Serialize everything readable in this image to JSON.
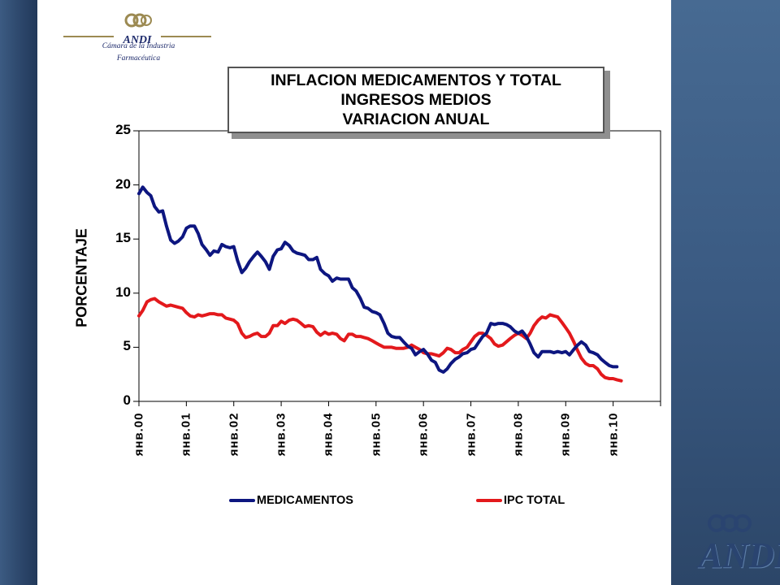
{
  "logo": {
    "name": "ANDI",
    "subtitle_line1": "Cámara de la Industria",
    "subtitle_line2": "Farmacéutica"
  },
  "title": {
    "line1": "INFLACION MEDICAMENTOS Y TOTAL",
    "line2": "INGRESOS MEDIOS",
    "line3": "VARIACION ANUAL"
  },
  "colors": {
    "medicamentos": "#0d1680",
    "ipc_total": "#e3191c",
    "background_band": "#2f4a6e"
  },
  "chart_data": {
    "type": "line",
    "ylabel": "PORCENTAJE",
    "xlabel": "",
    "ylim": [
      0,
      25
    ],
    "yticks": [
      "0",
      "5",
      "10",
      "15",
      "20",
      "25"
    ],
    "xticks": [
      "янв.00",
      "янв.01",
      "янв.02",
      "янв.03",
      "янв.04",
      "янв.05",
      "янв.06",
      "янв.07",
      "янв.08",
      "янв.09",
      "янв.10"
    ],
    "x_axis_units": "years since январь 2000",
    "xlim": [
      0,
      11
    ],
    "grid": false,
    "legend": "bottom",
    "series": [
      {
        "name": "MEDICAMENTOS",
        "points": [
          [
            0.0,
            19.2
          ],
          [
            0.08,
            19.8
          ],
          [
            0.17,
            19.3
          ],
          [
            0.25,
            19.0
          ],
          [
            0.33,
            18.0
          ],
          [
            0.42,
            17.5
          ],
          [
            0.5,
            17.6
          ],
          [
            0.58,
            16.2
          ],
          [
            0.67,
            14.9
          ],
          [
            0.75,
            14.6
          ],
          [
            0.83,
            14.8
          ],
          [
            0.92,
            15.2
          ],
          [
            1.0,
            16.0
          ],
          [
            1.08,
            16.2
          ],
          [
            1.17,
            16.2
          ],
          [
            1.25,
            15.5
          ],
          [
            1.33,
            14.5
          ],
          [
            1.42,
            14.0
          ],
          [
            1.5,
            13.5
          ],
          [
            1.58,
            13.9
          ],
          [
            1.67,
            13.8
          ],
          [
            1.75,
            14.5
          ],
          [
            1.83,
            14.3
          ],
          [
            1.92,
            14.2
          ],
          [
            2.0,
            14.3
          ],
          [
            2.08,
            13.0
          ],
          [
            2.17,
            11.9
          ],
          [
            2.25,
            12.3
          ],
          [
            2.33,
            12.9
          ],
          [
            2.42,
            13.4
          ],
          [
            2.5,
            13.8
          ],
          [
            2.58,
            13.4
          ],
          [
            2.67,
            12.9
          ],
          [
            2.75,
            12.2
          ],
          [
            2.83,
            13.4
          ],
          [
            2.92,
            14.0
          ],
          [
            3.0,
            14.1
          ],
          [
            3.08,
            14.7
          ],
          [
            3.17,
            14.4
          ],
          [
            3.25,
            13.9
          ],
          [
            3.33,
            13.7
          ],
          [
            3.42,
            13.6
          ],
          [
            3.5,
            13.5
          ],
          [
            3.58,
            13.1
          ],
          [
            3.67,
            13.1
          ],
          [
            3.75,
            13.3
          ],
          [
            3.83,
            12.2
          ],
          [
            3.92,
            11.8
          ],
          [
            4.0,
            11.6
          ],
          [
            4.08,
            11.1
          ],
          [
            4.17,
            11.4
          ],
          [
            4.25,
            11.3
          ],
          [
            4.33,
            11.3
          ],
          [
            4.42,
            11.3
          ],
          [
            4.5,
            10.5
          ],
          [
            4.58,
            10.2
          ],
          [
            4.67,
            9.5
          ],
          [
            4.75,
            8.7
          ],
          [
            4.83,
            8.6
          ],
          [
            4.92,
            8.3
          ],
          [
            5.0,
            8.2
          ],
          [
            5.08,
            8.0
          ],
          [
            5.17,
            7.2
          ],
          [
            5.25,
            6.3
          ],
          [
            5.33,
            6.0
          ],
          [
            5.42,
            5.9
          ],
          [
            5.5,
            5.9
          ],
          [
            5.58,
            5.5
          ],
          [
            5.67,
            5.1
          ],
          [
            5.75,
            4.9
          ],
          [
            5.83,
            4.3
          ],
          [
            5.92,
            4.6
          ],
          [
            6.0,
            4.8
          ],
          [
            6.08,
            4.4
          ],
          [
            6.17,
            3.8
          ],
          [
            6.25,
            3.6
          ],
          [
            6.33,
            2.9
          ],
          [
            6.42,
            2.7
          ],
          [
            6.5,
            3.0
          ],
          [
            6.58,
            3.5
          ],
          [
            6.67,
            3.9
          ],
          [
            6.75,
            4.1
          ],
          [
            6.83,
            4.4
          ],
          [
            6.92,
            4.5
          ],
          [
            7.0,
            4.8
          ],
          [
            7.08,
            4.9
          ],
          [
            7.17,
            5.5
          ],
          [
            7.25,
            6.0
          ],
          [
            7.33,
            6.3
          ],
          [
            7.42,
            7.2
          ],
          [
            7.5,
            7.1
          ],
          [
            7.58,
            7.2
          ],
          [
            7.67,
            7.2
          ],
          [
            7.75,
            7.1
          ],
          [
            7.83,
            6.9
          ],
          [
            7.92,
            6.5
          ],
          [
            8.0,
            6.3
          ],
          [
            8.08,
            6.5
          ],
          [
            8.17,
            6.0
          ],
          [
            8.25,
            5.3
          ],
          [
            8.33,
            4.5
          ],
          [
            8.42,
            4.1
          ],
          [
            8.5,
            4.6
          ],
          [
            8.58,
            4.6
          ],
          [
            8.67,
            4.6
          ],
          [
            8.75,
            4.5
          ],
          [
            8.83,
            4.6
          ],
          [
            8.92,
            4.5
          ],
          [
            9.0,
            4.6
          ],
          [
            9.08,
            4.3
          ],
          [
            9.17,
            4.8
          ],
          [
            9.25,
            5.2
          ],
          [
            9.33,
            5.5
          ],
          [
            9.42,
            5.2
          ],
          [
            9.5,
            4.6
          ],
          [
            9.58,
            4.5
          ],
          [
            9.67,
            4.3
          ],
          [
            9.75,
            3.9
          ],
          [
            9.83,
            3.6
          ],
          [
            9.92,
            3.3
          ],
          [
            10.0,
            3.2
          ],
          [
            10.08,
            3.2
          ]
        ]
      },
      {
        "name": "IPC TOTAL",
        "points": [
          [
            0.0,
            7.9
          ],
          [
            0.08,
            8.4
          ],
          [
            0.17,
            9.2
          ],
          [
            0.25,
            9.4
          ],
          [
            0.33,
            9.5
          ],
          [
            0.42,
            9.2
          ],
          [
            0.5,
            9.0
          ],
          [
            0.58,
            8.8
          ],
          [
            0.67,
            8.9
          ],
          [
            0.75,
            8.8
          ],
          [
            0.83,
            8.7
          ],
          [
            0.92,
            8.6
          ],
          [
            1.0,
            8.2
          ],
          [
            1.08,
            7.9
          ],
          [
            1.17,
            7.8
          ],
          [
            1.25,
            8.0
          ],
          [
            1.33,
            7.9
          ],
          [
            1.42,
            8.0
          ],
          [
            1.5,
            8.1
          ],
          [
            1.58,
            8.1
          ],
          [
            1.67,
            8.0
          ],
          [
            1.75,
            8.0
          ],
          [
            1.83,
            7.7
          ],
          [
            1.92,
            7.6
          ],
          [
            2.0,
            7.5
          ],
          [
            2.08,
            7.2
          ],
          [
            2.17,
            6.3
          ],
          [
            2.25,
            5.9
          ],
          [
            2.33,
            6.0
          ],
          [
            2.42,
            6.2
          ],
          [
            2.5,
            6.3
          ],
          [
            2.58,
            6.0
          ],
          [
            2.67,
            6.0
          ],
          [
            2.75,
            6.3
          ],
          [
            2.83,
            7.0
          ],
          [
            2.92,
            7.0
          ],
          [
            3.0,
            7.4
          ],
          [
            3.08,
            7.2
          ],
          [
            3.17,
            7.5
          ],
          [
            3.25,
            7.6
          ],
          [
            3.33,
            7.5
          ],
          [
            3.42,
            7.2
          ],
          [
            3.5,
            6.9
          ],
          [
            3.58,
            7.0
          ],
          [
            3.67,
            6.9
          ],
          [
            3.75,
            6.4
          ],
          [
            3.83,
            6.1
          ],
          [
            3.92,
            6.4
          ],
          [
            4.0,
            6.2
          ],
          [
            4.08,
            6.3
          ],
          [
            4.17,
            6.2
          ],
          [
            4.25,
            5.8
          ],
          [
            4.33,
            5.6
          ],
          [
            4.42,
            6.2
          ],
          [
            4.5,
            6.2
          ],
          [
            4.58,
            6.0
          ],
          [
            4.67,
            6.0
          ],
          [
            4.75,
            5.9
          ],
          [
            4.83,
            5.8
          ],
          [
            4.92,
            5.6
          ],
          [
            5.0,
            5.4
          ],
          [
            5.08,
            5.2
          ],
          [
            5.17,
            5.0
          ],
          [
            5.25,
            5.0
          ],
          [
            5.33,
            5.0
          ],
          [
            5.42,
            4.9
          ],
          [
            5.5,
            4.9
          ],
          [
            5.58,
            4.9
          ],
          [
            5.67,
            5.0
          ],
          [
            5.75,
            5.2
          ],
          [
            5.83,
            5.0
          ],
          [
            5.92,
            4.8
          ],
          [
            6.0,
            4.5
          ],
          [
            6.08,
            4.4
          ],
          [
            6.17,
            4.4
          ],
          [
            6.25,
            4.3
          ],
          [
            6.33,
            4.2
          ],
          [
            6.42,
            4.5
          ],
          [
            6.5,
            4.9
          ],
          [
            6.58,
            4.8
          ],
          [
            6.67,
            4.5
          ],
          [
            6.75,
            4.5
          ],
          [
            6.83,
            4.8
          ],
          [
            6.92,
            5.0
          ],
          [
            7.0,
            5.5
          ],
          [
            7.08,
            6.0
          ],
          [
            7.17,
            6.3
          ],
          [
            7.25,
            6.3
          ],
          [
            7.33,
            6.1
          ],
          [
            7.42,
            5.8
          ],
          [
            7.5,
            5.3
          ],
          [
            7.58,
            5.1
          ],
          [
            7.67,
            5.2
          ],
          [
            7.75,
            5.5
          ],
          [
            7.83,
            5.8
          ],
          [
            7.92,
            6.1
          ],
          [
            8.0,
            6.3
          ],
          [
            8.08,
            6.1
          ],
          [
            8.17,
            5.8
          ],
          [
            8.25,
            6.3
          ],
          [
            8.33,
            7.0
          ],
          [
            8.42,
            7.5
          ],
          [
            8.5,
            7.8
          ],
          [
            8.58,
            7.7
          ],
          [
            8.67,
            8.0
          ],
          [
            8.75,
            7.9
          ],
          [
            8.83,
            7.8
          ],
          [
            8.92,
            7.3
          ],
          [
            9.0,
            6.8
          ],
          [
            9.08,
            6.3
          ],
          [
            9.17,
            5.5
          ],
          [
            9.25,
            4.7
          ],
          [
            9.33,
            4.0
          ],
          [
            9.42,
            3.5
          ],
          [
            9.5,
            3.3
          ],
          [
            9.58,
            3.3
          ],
          [
            9.67,
            3.0
          ],
          [
            9.75,
            2.5
          ],
          [
            9.83,
            2.2
          ],
          [
            9.92,
            2.1
          ],
          [
            10.0,
            2.1
          ],
          [
            10.08,
            2.0
          ],
          [
            10.17,
            1.9
          ]
        ]
      }
    ]
  }
}
